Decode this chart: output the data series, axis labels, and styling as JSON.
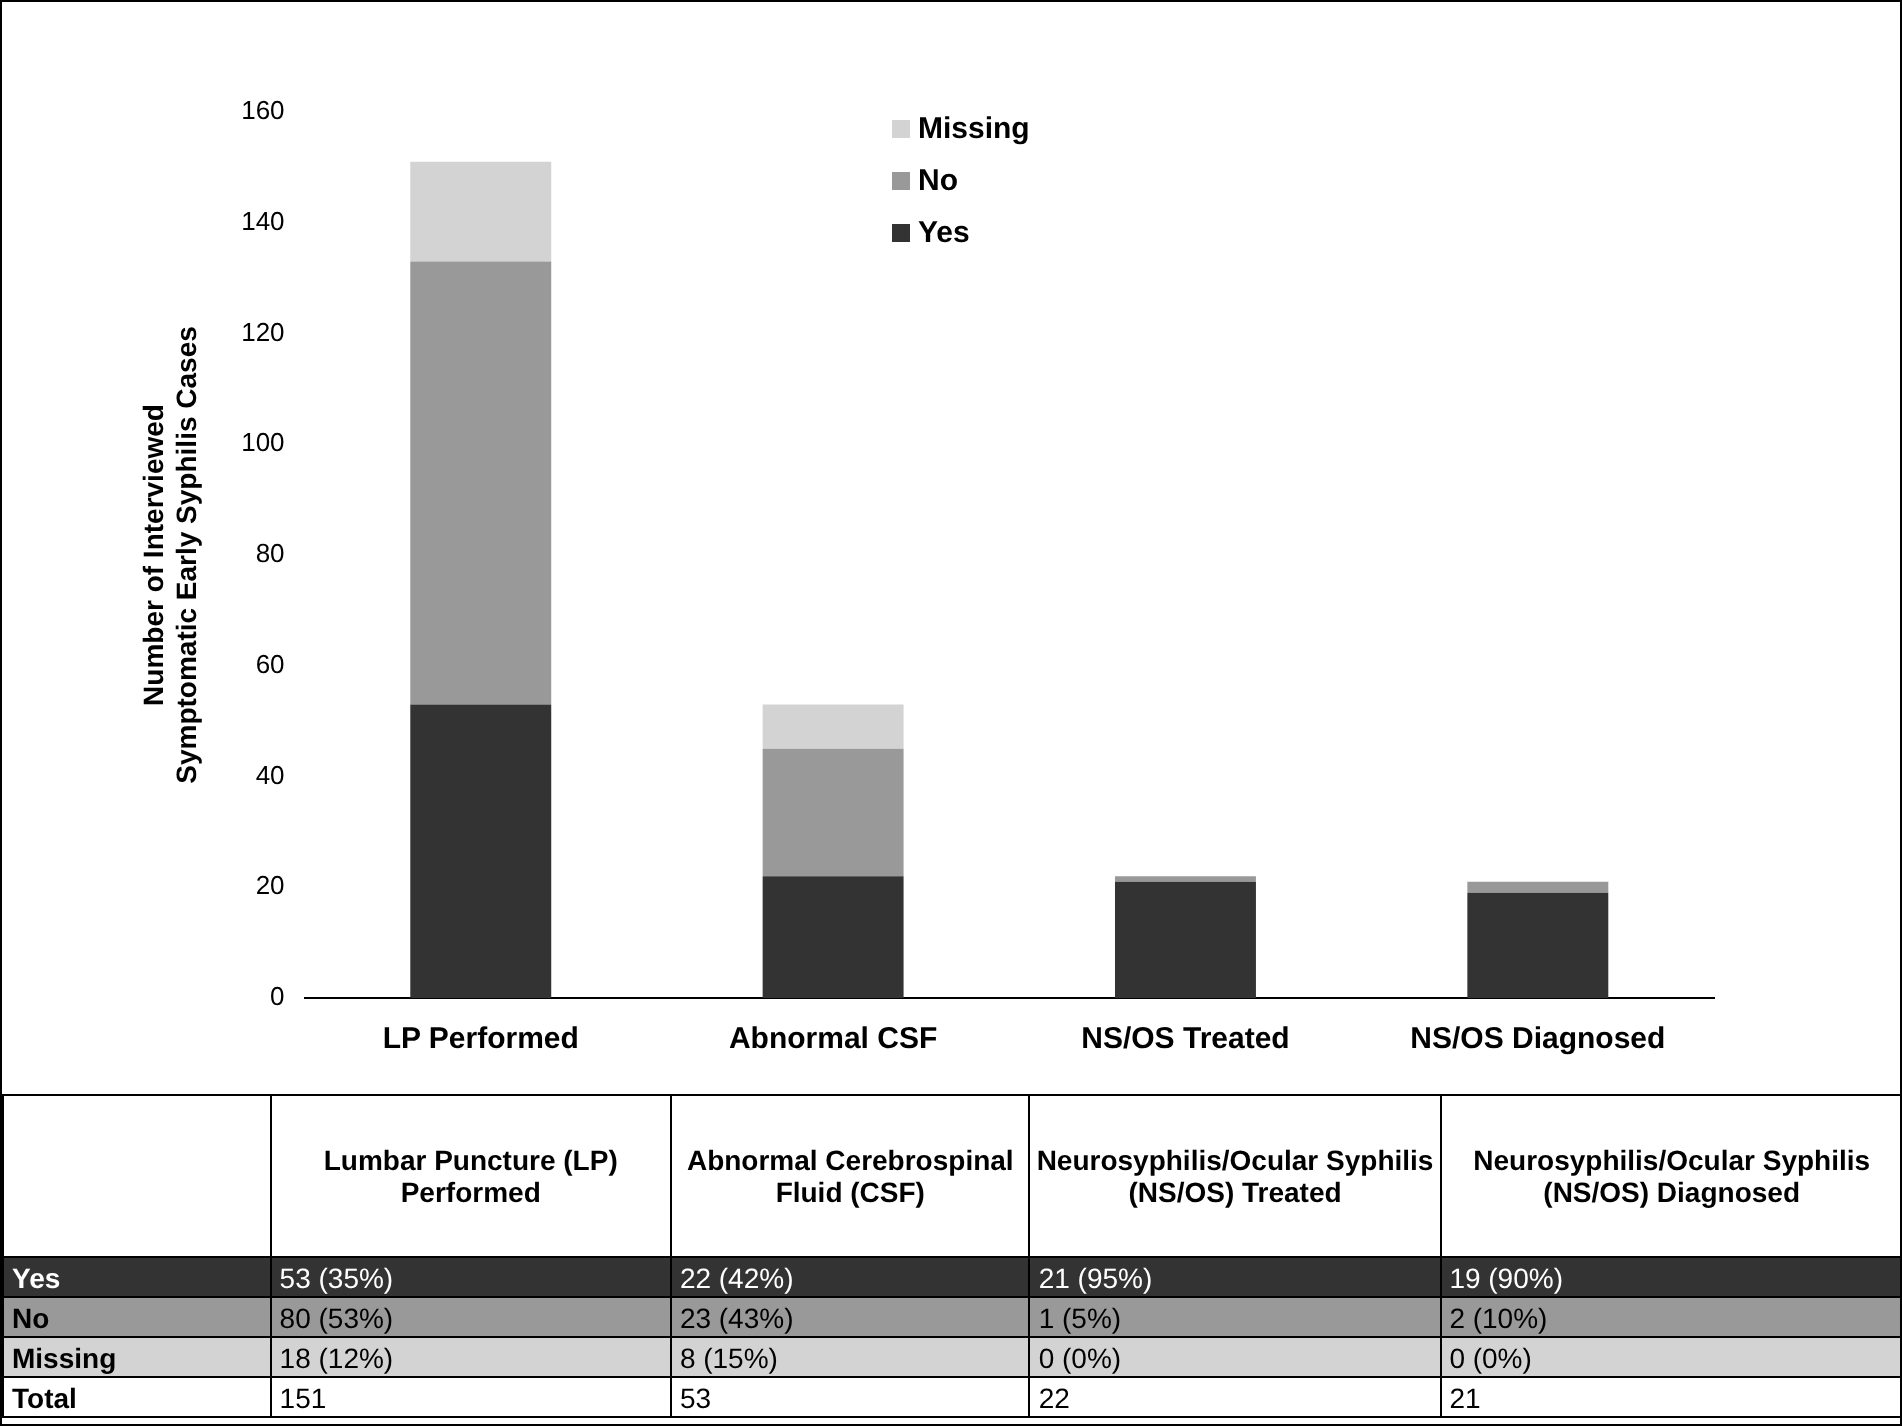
{
  "chart_data": {
    "type": "bar",
    "stacked": true,
    "ylabel": "Number of Interviewed Symptomatic Early Syphilis Cases",
    "categories": [
      "LP Performed",
      "Abnormal CSF",
      "NS/OS Treated",
      "NS/OS Diagnosed"
    ],
    "series": [
      {
        "name": "Yes",
        "color": "#333333",
        "values": [
          53,
          22,
          21,
          19
        ],
        "value_labels": [
          "53 (35%)",
          "22 (42%)",
          "21 (95%)",
          "19 (90%)"
        ]
      },
      {
        "name": "No",
        "color": "#999999",
        "values": [
          80,
          23,
          1,
          2
        ],
        "value_labels": [
          "80 (53%)",
          "23 (43%)",
          "1 (5%)",
          "2 (10%)"
        ]
      },
      {
        "name": "Missing",
        "color": "#d3d3d3",
        "values": [
          18,
          8,
          0,
          0
        ],
        "value_labels": [
          "18 (12%)",
          "8 (15%)",
          "0 (0%)",
          "0 (0%)"
        ]
      }
    ],
    "annotations": [
      "Lumbar Puncture (LP) Performed",
      "Abnormal Cerebrospinal Fluid (CSF)",
      "Neurosyphilis/Ocular Syphilis (NS/OS) Treated",
      "Neurosyphilis/Ocular Syphilis (NS/OS) Diagnosed",
      "Total",
      "151",
      "53",
      "22",
      "21"
    ],
    "ylim": [
      0,
      160
    ],
    "yticks": [
      0,
      20,
      40,
      60,
      80,
      100,
      120,
      140,
      160
    ],
    "grid": false,
    "legend": "top"
  }
}
